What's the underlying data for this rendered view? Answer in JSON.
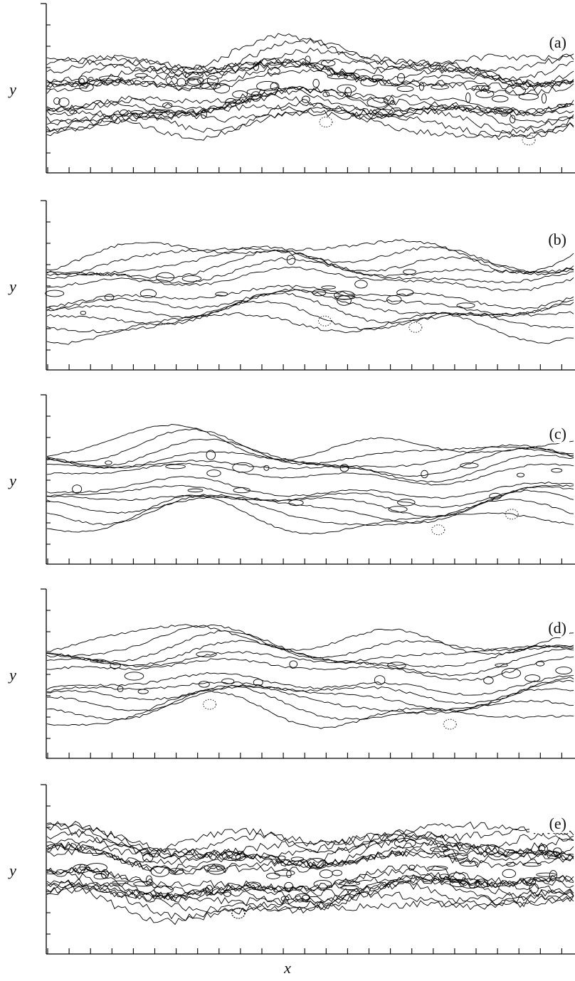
{
  "panels": [
    {
      "label": "(a)",
      "y_label": "y"
    },
    {
      "label": "(b)",
      "y_label": "y"
    },
    {
      "label": "(c)",
      "y_label": "y"
    },
    {
      "label": "(d)",
      "y_label": "y"
    },
    {
      "label": "(e)",
      "y_label": "y"
    }
  ],
  "x_label": "x"
}
